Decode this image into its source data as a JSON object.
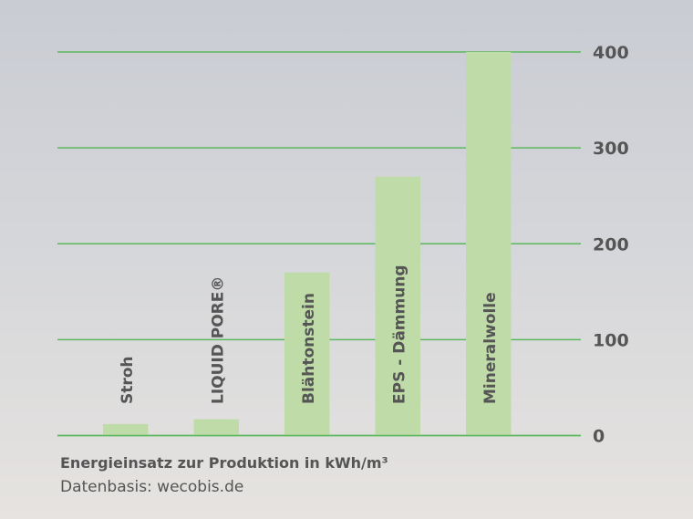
{
  "chart_data": {
    "type": "bar",
    "categories": [
      "Stroh",
      "LIQUID PORE®",
      "Blähtonstein",
      "EPS - Dämmung",
      "Mineralwolle"
    ],
    "values": [
      12,
      17,
      170,
      270,
      400
    ],
    "ylim": [
      0,
      400
    ],
    "yticks": [
      0,
      100,
      200,
      300,
      400
    ],
    "y_axis_side": "right",
    "grid": true,
    "xlabel": "",
    "ylabel": "",
    "colors": {
      "bar": "#bfdca8",
      "grid": "#5cb85c",
      "text": "#555555"
    }
  },
  "caption": {
    "title": "Energieinsatz zur Produktion in kWh/m³",
    "source": "Datenbasis: wecobis.de"
  }
}
